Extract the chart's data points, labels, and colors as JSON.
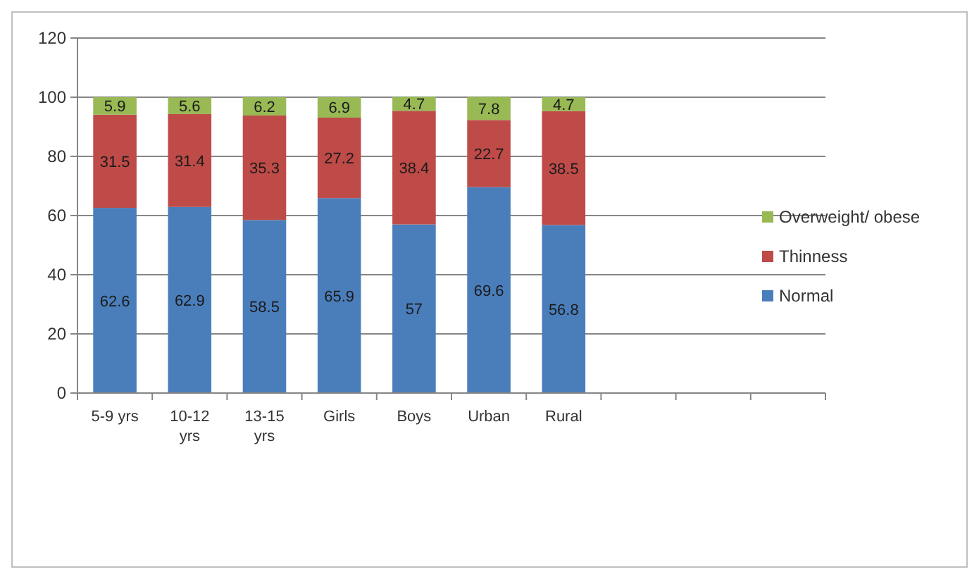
{
  "chart_data": {
    "type": "bar",
    "stacked": true,
    "categories": [
      "5-9 yrs",
      "10-12 yrs",
      "13-15 yrs",
      "Girls",
      "Boys",
      "Urban",
      "Rural",
      null,
      null,
      null
    ],
    "series": [
      {
        "name": "Normal",
        "color": "#4a7ebb",
        "values": [
          62.6,
          62.9,
          58.5,
          65.9,
          57,
          69.6,
          56.8,
          null,
          null,
          null
        ]
      },
      {
        "name": "Thinness",
        "color": "#be4b48",
        "values": [
          31.5,
          31.4,
          35.3,
          27.2,
          38.4,
          22.7,
          38.5,
          null,
          null,
          null
        ]
      },
      {
        "name": "Overweight/ obese",
        "color": "#98b954",
        "values": [
          5.9,
          5.6,
          6.2,
          6.9,
          4.7,
          7.8,
          4.7,
          null,
          null,
          null
        ]
      }
    ],
    "ylim": [
      0,
      120
    ],
    "yticks": [
      0,
      20,
      40,
      60,
      80,
      100,
      120
    ],
    "grid": "y",
    "legend": "right",
    "data_labels": true
  }
}
